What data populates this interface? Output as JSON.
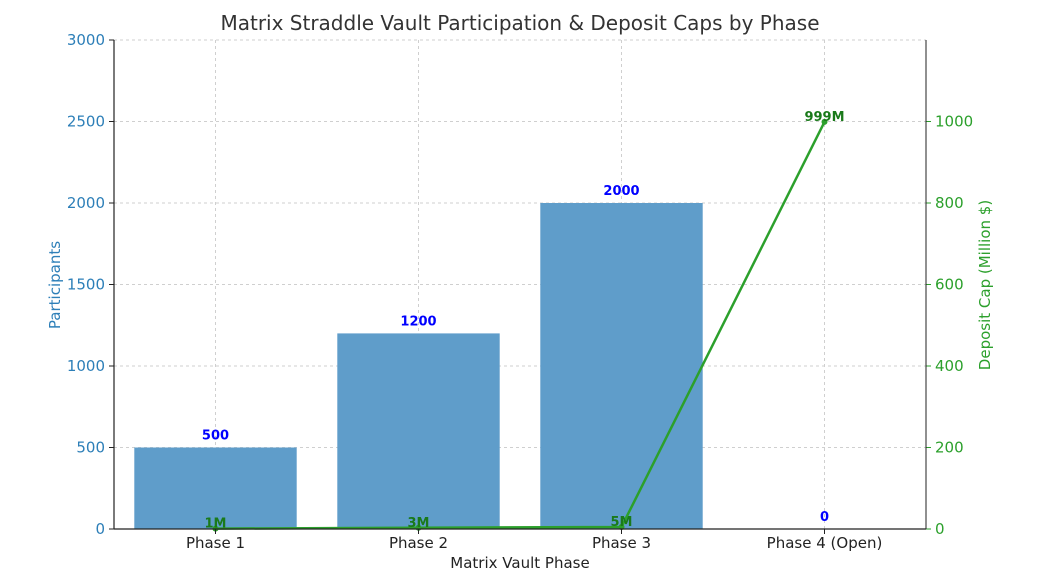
{
  "chart_data": {
    "type": "bar",
    "title": "Matrix Straddle Vault Participation & Deposit Caps by Phase",
    "xlabel": "Matrix Vault Phase",
    "ylabel": "Participants",
    "y2label": "Deposit Cap (Million $)",
    "categories": [
      "Phase 1",
      "Phase 2",
      "Phase 3",
      "Phase 4 (Open)"
    ],
    "ylim": [
      0,
      3000
    ],
    "yticks": [
      "0",
      "500",
      "1000",
      "1500",
      "2000",
      "2500",
      "3000"
    ],
    "y2lim": [
      0,
      1200
    ],
    "y2ticks": [
      "0",
      "200",
      "400",
      "600",
      "800",
      "1000"
    ],
    "grid": true,
    "series": [
      {
        "type": "bar",
        "axis": "left",
        "values": [
          500,
          1200,
          2000,
          0
        ],
        "labels": [
          "500",
          "1200",
          "2000",
          "0"
        ],
        "color": "#5f9dca",
        "label_color": "#0000ff"
      },
      {
        "type": "line",
        "axis": "right",
        "values": [
          1,
          3,
          5,
          999
        ],
        "labels": [
          "1M",
          "3M",
          "5M",
          "999M"
        ],
        "color": "#2ca02c",
        "label_color": "#1a7a1a"
      }
    ],
    "colors": {
      "left_axis": "#2d7fb8",
      "right_axis": "#2ca02c"
    }
  }
}
